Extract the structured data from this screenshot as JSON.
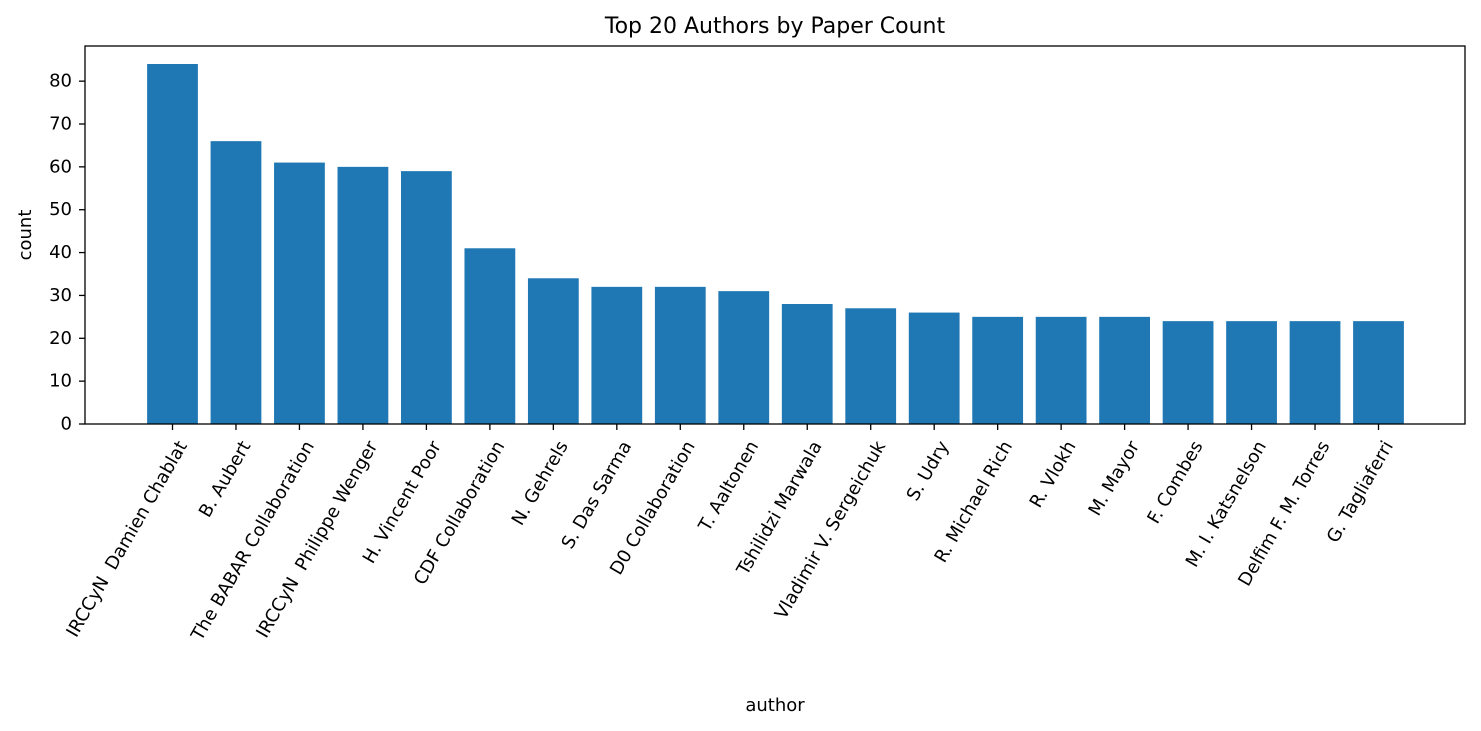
{
  "chart_data": {
    "type": "bar",
    "title": "Top 20 Authors by Paper Count",
    "xlabel": "author",
    "ylabel": "count",
    "ylim": [
      0,
      88.2
    ],
    "yticks": [
      0,
      10,
      20,
      30,
      40,
      50,
      60,
      70,
      80
    ],
    "grid": false,
    "bar_color": "#1f77b4",
    "categories": [
      "IRCCyN  Damien Chablat",
      "B. Aubert",
      "The BABAR Collaboration",
      "IRCCyN  Philippe Wenger",
      "H. Vincent Poor",
      "CDF Collaboration",
      "N. Gehrels",
      "S. Das Sarma",
      "D0 Collaboration",
      "T. Aaltonen",
      "Tshilidzi Marwala",
      "Vladimir V. Sergeichuk",
      "S. Udry",
      "R. Michael Rich",
      "R. Vlokh",
      "M. Mayor",
      "F. Combes",
      "M. I. Katsnelson",
      "Delfim F. M. Torres",
      "G. Tagliaferri"
    ],
    "values": [
      84,
      66,
      61,
      60,
      59,
      41,
      34,
      32,
      32,
      31,
      28,
      27,
      26,
      25,
      25,
      25,
      24,
      24,
      24,
      24
    ]
  }
}
